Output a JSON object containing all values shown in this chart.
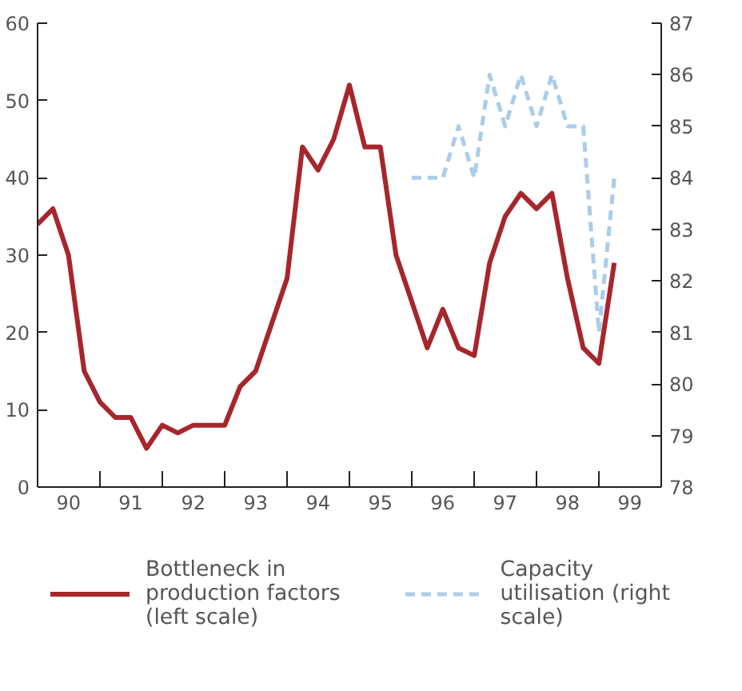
{
  "chart_data": {
    "type": "line",
    "x": [
      "1990-01",
      "1990-04",
      "1990-07",
      "1990-10",
      "1991-01",
      "1991-04",
      "1991-07",
      "1991-10",
      "1992-01",
      "1992-04",
      "1992-07",
      "1992-10",
      "1993-01",
      "1993-04",
      "1993-07",
      "1993-10",
      "1994-01",
      "1994-04",
      "1994-07",
      "1994-10",
      "1995-01",
      "1995-04",
      "1995-07",
      "1995-10",
      "1996-01",
      "1996-04",
      "1996-07",
      "1996-10",
      "1997-01",
      "1997-04",
      "1997-07",
      "1997-10",
      "1998-01",
      "1998-04",
      "1998-07",
      "1998-10",
      "1999-01",
      "1999-04"
    ],
    "series": [
      {
        "name": "Bottleneck in production factors (left scale)",
        "color": "#a6262c",
        "line_style": "solid",
        "values": [
          34,
          36,
          30,
          15,
          11,
          9,
          9,
          5,
          8,
          7,
          8,
          8,
          8,
          13,
          15,
          21,
          27,
          44,
          41,
          45,
          52,
          44,
          44,
          30,
          24,
          18,
          23,
          18,
          17,
          29,
          35,
          38,
          36,
          38,
          27,
          18,
          16,
          29
        ]
      },
      {
        "name": "Capacity utilisation (right scale)",
        "color": "#a9cdea",
        "line_style": "dashed",
        "axis": "y2",
        "values": [
          null,
          null,
          null,
          null,
          null,
          null,
          null,
          null,
          null,
          null,
          null,
          null,
          null,
          null,
          null,
          null,
          null,
          null,
          null,
          null,
          null,
          null,
          null,
          null,
          84,
          84,
          84,
          85,
          84,
          86,
          85,
          86,
          85,
          86,
          85,
          85,
          81,
          84
        ]
      }
    ],
    "xlim": [
      "1990-01",
      "2000-01"
    ],
    "xticks": [
      {
        "value": "1990-07",
        "label": "90"
      },
      {
        "value": "1991-01",
        "label": null
      },
      {
        "value": "1991-07",
        "label": "91"
      },
      {
        "value": "1992-01",
        "label": null
      },
      {
        "value": "1992-07",
        "label": "92"
      },
      {
        "value": "1993-01",
        "label": null
      },
      {
        "value": "1993-07",
        "label": "93"
      },
      {
        "value": "1994-01",
        "label": null
      },
      {
        "value": "1994-07",
        "label": "94"
      },
      {
        "value": "1995-01",
        "label": null
      },
      {
        "value": "1995-07",
        "label": "95"
      },
      {
        "value": "1996-01",
        "label": null
      },
      {
        "value": "1996-07",
        "label": "96"
      },
      {
        "value": "1997-01",
        "label": null
      },
      {
        "value": "1997-07",
        "label": "97"
      },
      {
        "value": "1998-01",
        "label": null
      },
      {
        "value": "1998-07",
        "label": "98"
      },
      {
        "value": "1999-01",
        "label": null
      },
      {
        "value": "1999-07",
        "label": "99"
      }
    ],
    "ylim": [
      0,
      60
    ],
    "yticks": [
      0,
      10,
      20,
      30,
      40,
      50,
      60
    ],
    "y2lim": [
      78,
      87
    ],
    "y2ticks": [
      78,
      79,
      80,
      81,
      82,
      83,
      84,
      85,
      86,
      87
    ],
    "grid": false,
    "legend": "bottom"
  }
}
